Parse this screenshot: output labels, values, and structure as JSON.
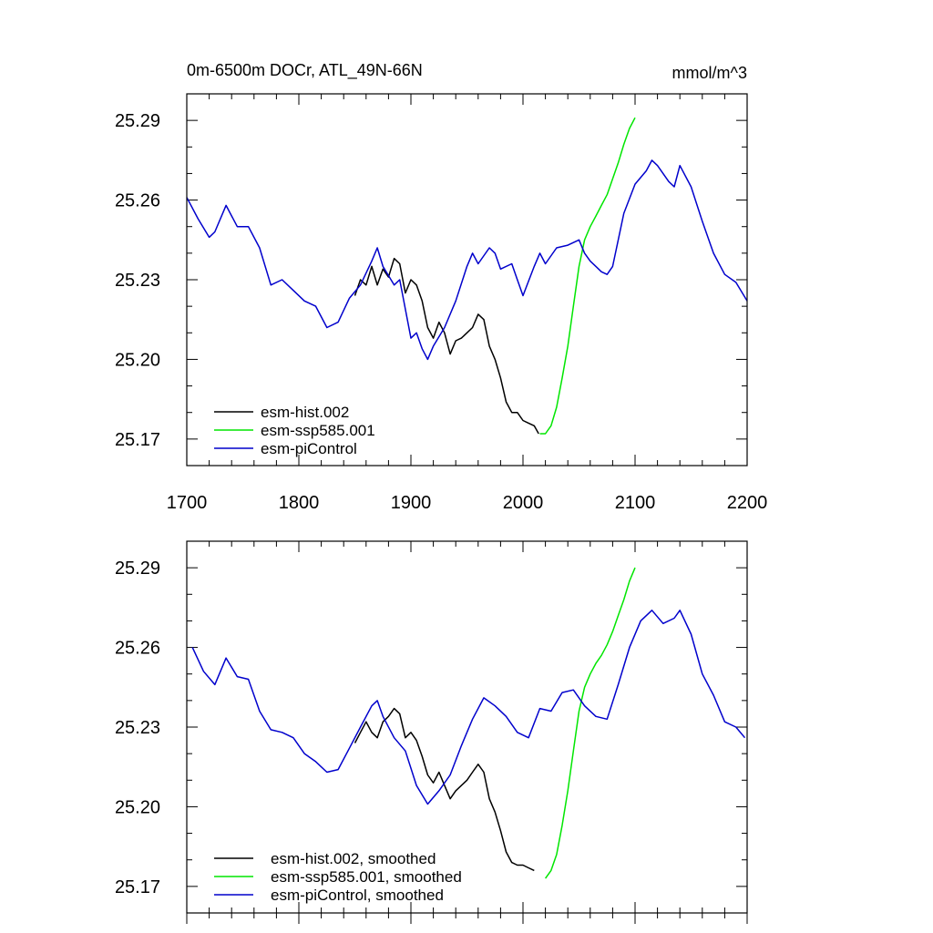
{
  "chart_data": [
    {
      "type": "line",
      "panel": "top",
      "title_left": "0m-6500m DOCr, ATL_49N-66N",
      "title_right": "mmol/m^3",
      "xlim": [
        1700,
        2200
      ],
      "ylim": [
        25.16,
        25.3
      ],
      "xticks": [
        1700,
        1800,
        1900,
        2000,
        2100,
        2200
      ],
      "xtick_labels": [
        "1700",
        "1800",
        "1900",
        "2000",
        "2100",
        "2200"
      ],
      "yticks": [
        25.17,
        25.2,
        25.23,
        25.26,
        25.29
      ],
      "ytick_labels": [
        "25.17",
        "25.20",
        "25.23",
        "25.26",
        "25.29"
      ],
      "legend_position": "bottom-left",
      "series": [
        {
          "name": "esm-hist.002",
          "color": "#000000",
          "x": [
            1850,
            1855,
            1860,
            1865,
            1870,
            1875,
            1880,
            1885,
            1890,
            1895,
            1900,
            1905,
            1910,
            1915,
            1920,
            1925,
            1930,
            1935,
            1940,
            1945,
            1950,
            1955,
            1960,
            1965,
            1970,
            1975,
            1980,
            1985,
            1990,
            1995,
            2000,
            2005,
            2010,
            2014
          ],
          "y": [
            25.224,
            25.23,
            25.228,
            25.235,
            25.228,
            25.234,
            25.231,
            25.238,
            25.236,
            25.225,
            25.23,
            25.228,
            25.222,
            25.212,
            25.208,
            25.214,
            25.21,
            25.202,
            25.207,
            25.208,
            25.21,
            25.212,
            25.217,
            25.215,
            25.205,
            25.2,
            25.193,
            25.184,
            25.18,
            25.18,
            25.177,
            25.176,
            25.175,
            25.172
          ]
        },
        {
          "name": "esm-ssp585.001",
          "color": "#00e600",
          "x": [
            2015,
            2020,
            2025,
            2030,
            2035,
            2040,
            2045,
            2050,
            2055,
            2060,
            2065,
            2070,
            2075,
            2080,
            2085,
            2090,
            2095,
            2100
          ],
          "y": [
            25.172,
            25.172,
            25.175,
            25.182,
            25.193,
            25.205,
            25.22,
            25.235,
            25.245,
            25.25,
            25.254,
            25.258,
            25.262,
            25.268,
            25.274,
            25.281,
            25.287,
            25.291
          ]
        },
        {
          "name": "esm-piControl",
          "color": "#0000cc",
          "x": [
            1700,
            1710,
            1720,
            1725,
            1735,
            1745,
            1755,
            1765,
            1775,
            1785,
            1795,
            1805,
            1815,
            1825,
            1835,
            1845,
            1855,
            1865,
            1870,
            1875,
            1885,
            1890,
            1900,
            1905,
            1910,
            1915,
            1920,
            1930,
            1940,
            1950,
            1955,
            1960,
            1970,
            1975,
            1980,
            1990,
            1995,
            2000,
            2010,
            2015,
            2020,
            2030,
            2040,
            2050,
            2055,
            2060,
            2065,
            2070,
            2075,
            2080,
            2090,
            2100,
            2110,
            2115,
            2120,
            2130,
            2135,
            2140,
            2150,
            2160,
            2170,
            2180,
            2190,
            2200
          ],
          "y": [
            25.261,
            25.253,
            25.246,
            25.248,
            25.258,
            25.25,
            25.25,
            25.242,
            25.228,
            25.23,
            25.226,
            25.222,
            25.22,
            25.212,
            25.214,
            25.223,
            25.228,
            25.237,
            25.242,
            25.235,
            25.228,
            25.23,
            25.208,
            25.21,
            25.204,
            25.2,
            25.205,
            25.212,
            25.222,
            25.235,
            25.24,
            25.236,
            25.242,
            25.24,
            25.234,
            25.236,
            25.23,
            25.224,
            25.235,
            25.24,
            25.236,
            25.242,
            25.243,
            25.245,
            25.24,
            25.237,
            25.235,
            25.233,
            25.232,
            25.235,
            25.255,
            25.266,
            25.271,
            25.275,
            25.273,
            25.267,
            25.265,
            25.273,
            25.265,
            25.252,
            25.24,
            25.232,
            25.229,
            25.222
          ]
        }
      ]
    },
    {
      "type": "line",
      "panel": "bottom",
      "xlim": [
        1700,
        2200
      ],
      "ylim": [
        25.16,
        25.3
      ],
      "xticks": [
        1700,
        1800,
        1900,
        2000,
        2100,
        2200
      ],
      "yticks": [
        25.17,
        25.2,
        25.23,
        25.26,
        25.29
      ],
      "ytick_labels": [
        "25.17",
        "25.20",
        "25.23",
        "25.26",
        "25.29"
      ],
      "legend_position": "bottom-left",
      "series": [
        {
          "name": "esm-hist.002, smoothed",
          "color": "#000000",
          "x": [
            1850,
            1855,
            1860,
            1865,
            1870,
            1875,
            1880,
            1885,
            1890,
            1895,
            1900,
            1905,
            1910,
            1915,
            1920,
            1925,
            1930,
            1935,
            1940,
            1945,
            1950,
            1955,
            1960,
            1965,
            1970,
            1975,
            1980,
            1985,
            1990,
            1995,
            2000,
            2005,
            2010
          ],
          "y": [
            25.224,
            25.228,
            25.232,
            25.228,
            25.226,
            25.232,
            25.234,
            25.237,
            25.235,
            25.226,
            25.228,
            25.225,
            25.219,
            25.212,
            25.209,
            25.213,
            25.208,
            25.203,
            25.206,
            25.208,
            25.21,
            25.213,
            25.216,
            25.213,
            25.203,
            25.198,
            25.191,
            25.183,
            25.179,
            25.178,
            25.178,
            25.177,
            25.176
          ]
        },
        {
          "name": "esm-ssp585.001, smoothed",
          "color": "#00e600",
          "x": [
            2020,
            2025,
            2030,
            2035,
            2040,
            2045,
            2050,
            2055,
            2060,
            2065,
            2070,
            2075,
            2080,
            2085,
            2090,
            2095,
            2100
          ],
          "y": [
            25.173,
            25.176,
            25.182,
            25.193,
            25.206,
            25.221,
            25.236,
            25.245,
            25.25,
            25.254,
            25.257,
            25.261,
            25.266,
            25.272,
            25.278,
            25.285,
            25.29
          ]
        },
        {
          "name": "esm-piControl, smoothed",
          "color": "#0000cc",
          "x": [
            1705,
            1715,
            1725,
            1735,
            1745,
            1755,
            1765,
            1775,
            1785,
            1795,
            1805,
            1815,
            1825,
            1835,
            1845,
            1855,
            1865,
            1870,
            1875,
            1885,
            1895,
            1905,
            1915,
            1925,
            1935,
            1945,
            1955,
            1965,
            1975,
            1985,
            1995,
            2005,
            2015,
            2025,
            2035,
            2045,
            2055,
            2065,
            2075,
            2085,
            2095,
            2105,
            2115,
            2125,
            2135,
            2140,
            2150,
            2160,
            2170,
            2180,
            2190,
            2198
          ],
          "y": [
            25.26,
            25.251,
            25.246,
            25.256,
            25.249,
            25.248,
            25.236,
            25.229,
            25.228,
            25.226,
            25.22,
            25.217,
            25.213,
            25.214,
            25.222,
            25.23,
            25.238,
            25.24,
            25.234,
            25.226,
            25.221,
            25.208,
            25.201,
            25.206,
            25.212,
            25.223,
            25.233,
            25.241,
            25.238,
            25.234,
            25.228,
            25.226,
            25.237,
            25.236,
            25.243,
            25.244,
            25.238,
            25.234,
            25.233,
            25.246,
            25.26,
            25.27,
            25.274,
            25.269,
            25.271,
            25.274,
            25.265,
            25.25,
            25.242,
            25.232,
            25.23,
            25.226
          ]
        }
      ]
    }
  ]
}
